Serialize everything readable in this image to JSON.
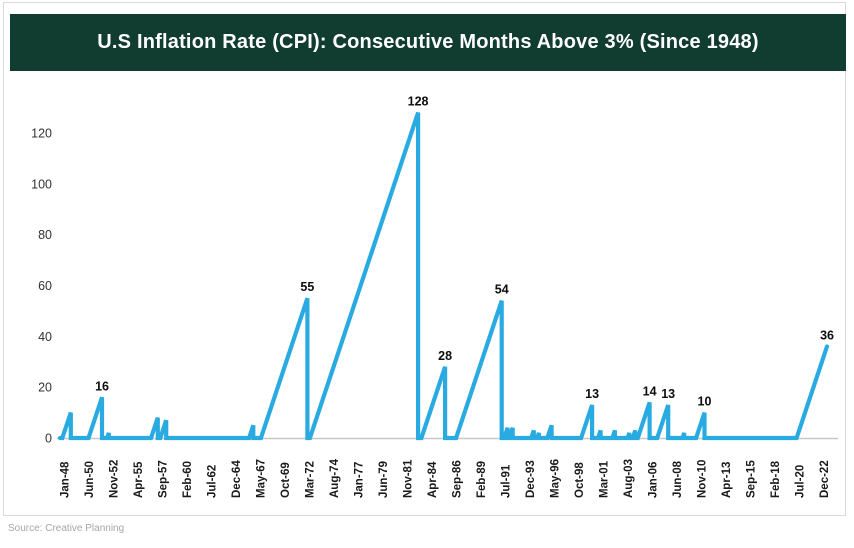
{
  "header": {
    "title": "U.S Inflation Rate (CPI): Consecutive Months Above 3% (Since 1948)"
  },
  "footer": {
    "source": "Source: Creative Planning"
  },
  "colors": {
    "header_bg": "#113c30",
    "header_text": "#ffffff",
    "line": "#29abe2",
    "axis_line": "#c8c8c8",
    "y_tick_text": "#333333",
    "x_tick_text": "#1a1a1a",
    "peak_label_text": "#0d0d0d",
    "border": "#d9d9d9",
    "source_text": "#a6a6a6"
  },
  "chart_data": {
    "type": "line",
    "title": "U.S Inflation Rate (CPI): Consecutive Months Above 3% (Since 1948)",
    "xlabel": "",
    "ylabel": "",
    "x_unit": "months since Jan-1948",
    "x_start_label": "Jan-48",
    "x_tick_interval_months": 29,
    "x_tick_labels": [
      "Jan-48",
      "Jun-50",
      "Nov-52",
      "Apr-55",
      "Sep-57",
      "Feb-60",
      "Jul-62",
      "Dec-64",
      "May-67",
      "Oct-69",
      "Mar-72",
      "Aug-74",
      "Jan-77",
      "Jun-79",
      "Nov-81",
      "Apr-84",
      "Sep-86",
      "Feb-89",
      "Jul-91",
      "Dec-93",
      "May-96",
      "Oct-98",
      "Mar-01",
      "Aug-03",
      "Jan-06",
      "Jun-08",
      "Nov-10",
      "Apr-13",
      "Sep-15",
      "Feb-18",
      "Jul-20",
      "Dec-22"
    ],
    "x_tick_labels_rotated": true,
    "y_ticks": [
      0,
      20,
      40,
      60,
      80,
      100,
      120
    ],
    "ylim": [
      0,
      130
    ],
    "grid": false,
    "legend": false,
    "series_name": "Consecutive months above 3%",
    "runs_note": "Each run rises 1 per month from 0 to peak value v (peak at month end_m since Jan-1948), then resets vertically to 0. Labeled peaks carry data labels.",
    "runs": [
      {
        "end_m": 8,
        "v": 10,
        "label": ""
      },
      {
        "end_m": 45,
        "v": 16,
        "label": "16"
      },
      {
        "end_m": 53,
        "v": 2,
        "label": ""
      },
      {
        "end_m": 111,
        "v": 8,
        "label": ""
      },
      {
        "end_m": 121,
        "v": 7,
        "label": ""
      },
      {
        "end_m": 224,
        "v": 5,
        "label": ""
      },
      {
        "end_m": 288,
        "v": 55,
        "label": "55"
      },
      {
        "end_m": 419,
        "v": 128,
        "label": "128"
      },
      {
        "end_m": 451,
        "v": 28,
        "label": "28"
      },
      {
        "end_m": 518,
        "v": 54,
        "label": "54"
      },
      {
        "end_m": 525,
        "v": 4,
        "label": ""
      },
      {
        "end_m": 531,
        "v": 4,
        "label": ""
      },
      {
        "end_m": 556,
        "v": 3,
        "label": ""
      },
      {
        "end_m": 562,
        "v": 2,
        "label": ""
      },
      {
        "end_m": 577,
        "v": 5,
        "label": ""
      },
      {
        "end_m": 625,
        "v": 13,
        "label": "13"
      },
      {
        "end_m": 635,
        "v": 3,
        "label": ""
      },
      {
        "end_m": 652,
        "v": 3,
        "label": ""
      },
      {
        "end_m": 669,
        "v": 2,
        "label": ""
      },
      {
        "end_m": 676,
        "v": 3,
        "label": ""
      },
      {
        "end_m": 693,
        "v": 14,
        "label": "14"
      },
      {
        "end_m": 715,
        "v": 13,
        "label": "13"
      },
      {
        "end_m": 734,
        "v": 2,
        "label": ""
      },
      {
        "end_m": 758,
        "v": 10,
        "label": "10"
      },
      {
        "end_m": 903,
        "v": 36,
        "label": "36",
        "no_reset": true
      }
    ],
    "annotated_peaks": [
      16,
      55,
      128,
      28,
      54,
      13,
      14,
      13,
      10,
      36
    ]
  }
}
